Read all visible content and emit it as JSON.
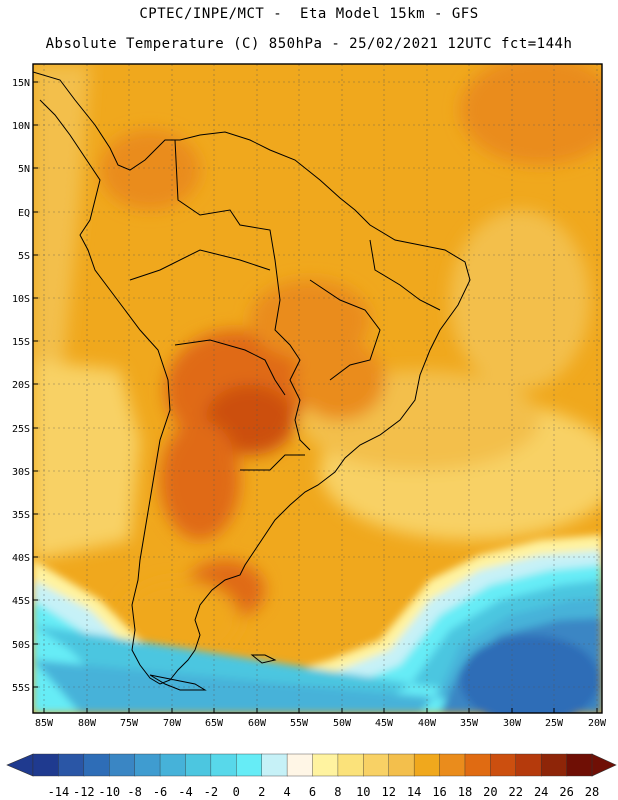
{
  "header": {
    "line1": "CPTEC/INPE/MCT -  Eta Model 15km - GFS",
    "line2": "Absolute Temperature (C) 850hPa - 25/02/2021 12UTC fct=144h"
  },
  "map": {
    "lat_labels": [
      "15N",
      "10N",
      "5N",
      "EQ",
      "5S",
      "10S",
      "15S",
      "20S",
      "25S",
      "30S",
      "35S",
      "40S",
      "45S",
      "50S",
      "55S"
    ],
    "lon_labels": [
      "85W",
      "80W",
      "75W",
      "70W",
      "65W",
      "60W",
      "55W",
      "50W",
      "45W",
      "40W",
      "35W",
      "30W",
      "25W",
      "20W"
    ],
    "lat_range": [
      16.5,
      -57.5
    ],
    "lon_range": [
      -86,
      -20
    ]
  },
  "colorbar": {
    "labels": [
      "-14",
      "-12",
      "-10",
      "-8",
      "-6",
      "-4",
      "-2",
      "0",
      "2",
      "4",
      "6",
      "8",
      "10",
      "12",
      "14",
      "16",
      "18",
      "20",
      "22",
      "24",
      "26",
      "28"
    ],
    "colors": [
      "#1f3a8f",
      "#2a56a6",
      "#2e6db7",
      "#3a86c4",
      "#3f9cd0",
      "#46b2d9",
      "#4cc6e0",
      "#58d8ea",
      "#66ecf6",
      "#c6f1f7",
      "#fff6e6",
      "#fff3a0",
      "#fbe27a",
      "#f8d165",
      "#f3bf4c",
      "#f0a81d",
      "#ea8c1c",
      "#e06b12",
      "#cc4f0f",
      "#b53a0c",
      "#8e2508",
      "#6f0f05"
    ]
  }
}
